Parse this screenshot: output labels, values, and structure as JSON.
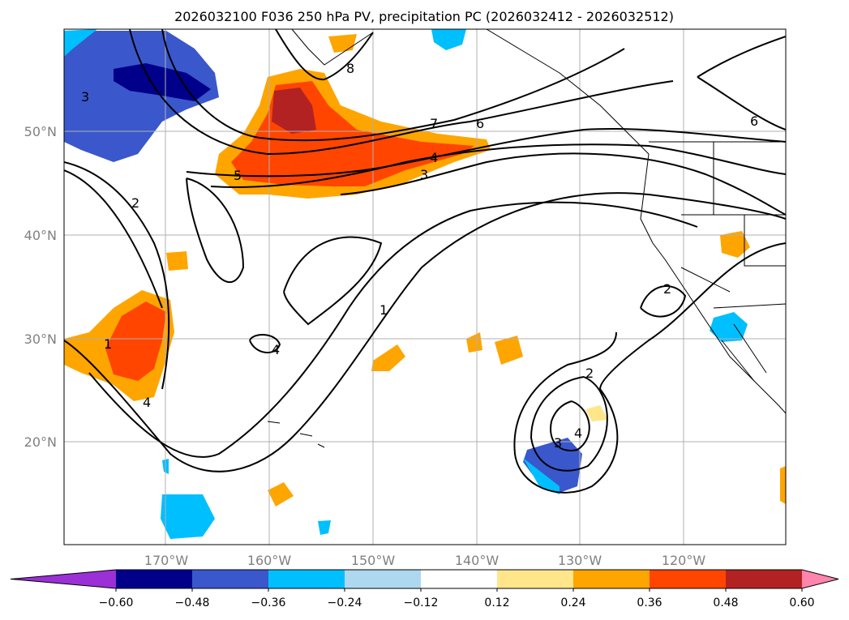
{
  "title": "2026032100 F036 250 hPa PV, precipitation PC (2026032412 - 2026032512)",
  "map": {
    "lat_ticks": [
      "50°N",
      "40°N",
      "30°N",
      "20°N"
    ],
    "lon_ticks": [
      "170°W",
      "160°W",
      "150°W",
      "140°W",
      "130°W",
      "120°W"
    ],
    "gridlines": true,
    "contour_labels": [
      "1",
      "2",
      "3",
      "4",
      "5",
      "6",
      "7",
      "8",
      "1",
      "2",
      "3",
      "4",
      "2",
      "3",
      "4",
      "4",
      "6",
      "2"
    ]
  },
  "colorbar": {
    "tick_labels": [
      "−0.60",
      "−0.48",
      "−0.36",
      "−0.24",
      "−0.12",
      "0.12",
      "0.24",
      "0.36",
      "0.48",
      "0.60"
    ],
    "colors": [
      "#9b30d6",
      "#00008b",
      "#3a57cc",
      "#00bfff",
      "#add8f0",
      "#ffffff",
      "#ffe68a",
      "#ffa500",
      "#ff4500",
      "#b22222",
      "#ff85ad"
    ],
    "extend": "both"
  }
}
